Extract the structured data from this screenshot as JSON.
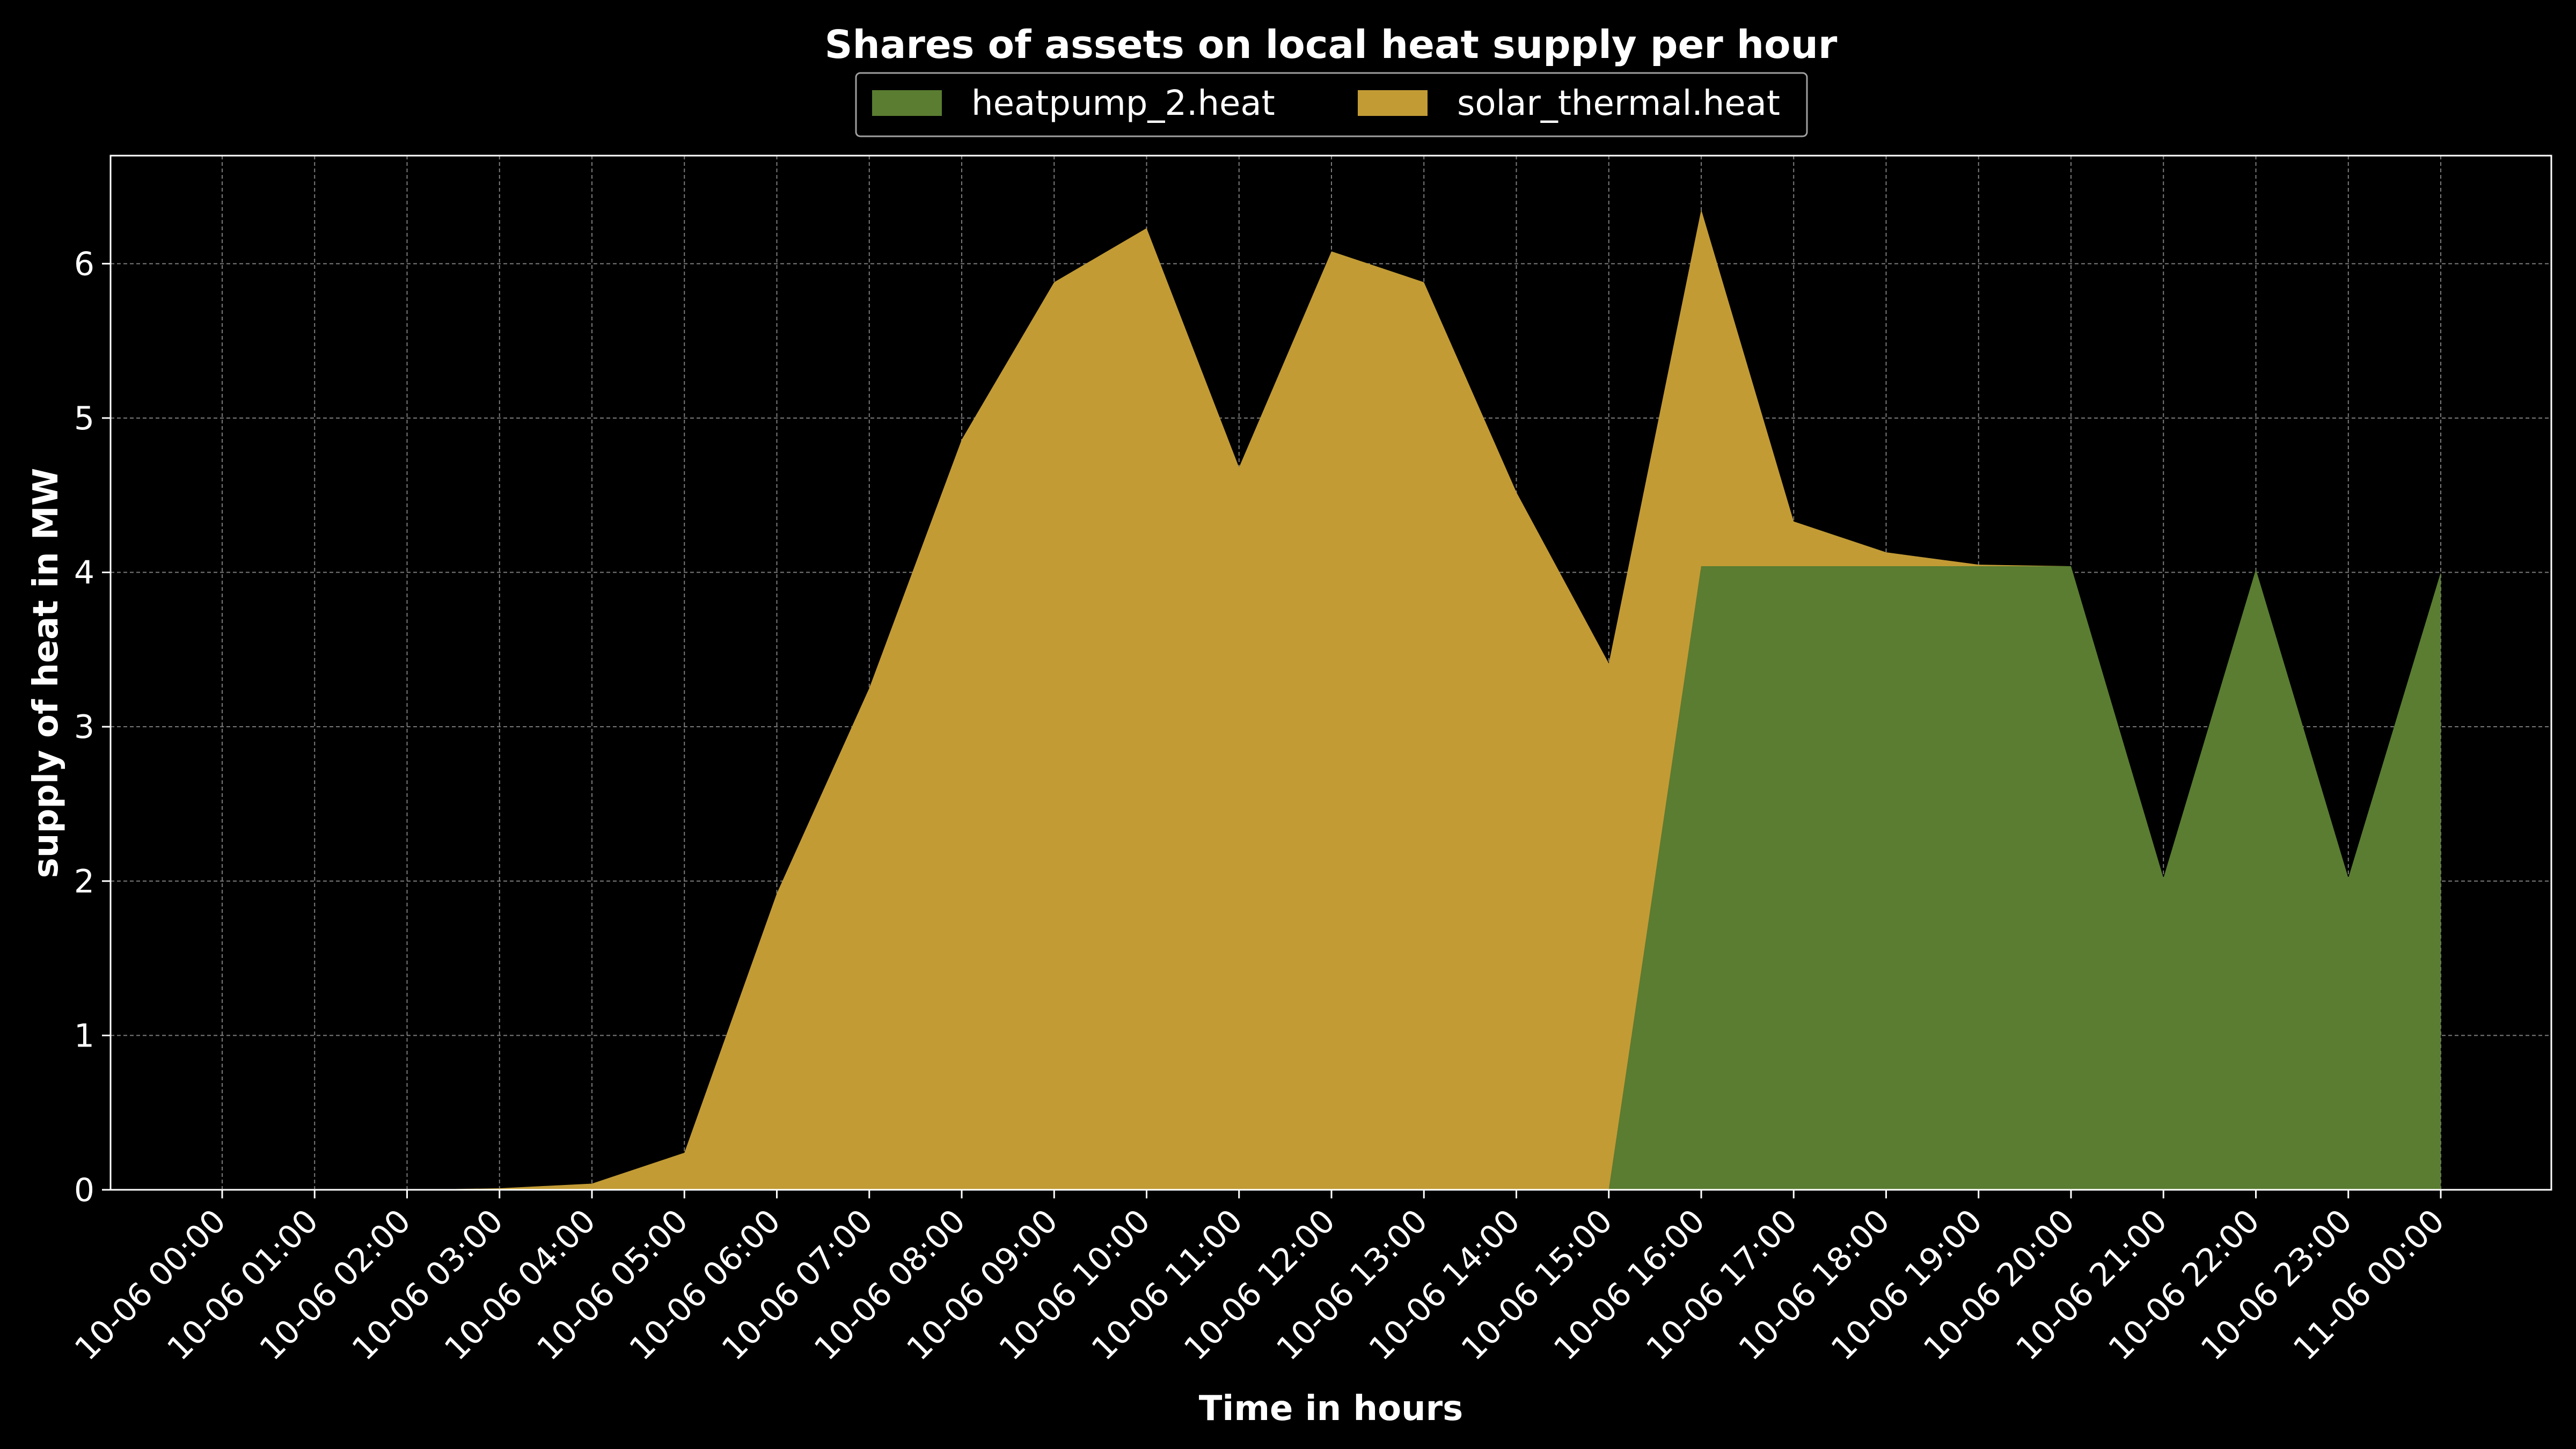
{
  "chart_data": {
    "type": "area",
    "stacked": true,
    "title": "Shares of assets on local heat supply per hour",
    "xlabel": "Time in hours",
    "ylabel": "supply of heat in MW",
    "ylim": [
      0,
      6.7
    ],
    "yticks": [
      0,
      1,
      2,
      3,
      4,
      5,
      6
    ],
    "grid": true,
    "legend_position": "top-center",
    "categories": [
      "10-06 00:00",
      "10-06 01:00",
      "10-06 02:00",
      "10-06 03:00",
      "10-06 04:00",
      "10-06 05:00",
      "10-06 06:00",
      "10-06 07:00",
      "10-06 08:00",
      "10-06 09:00",
      "10-06 10:00",
      "10-06 11:00",
      "10-06 12:00",
      "10-06 13:00",
      "10-06 14:00",
      "10-06 15:00",
      "10-06 16:00",
      "10-06 17:00",
      "10-06 18:00",
      "10-06 19:00",
      "10-06 20:00",
      "10-06 21:00",
      "10-06 22:00",
      "10-06 23:00",
      "11-06 00:00"
    ],
    "series": [
      {
        "name": "heatpump_2.heat",
        "color": "#5a7d31",
        "values": [
          0,
          0,
          0,
          0,
          0,
          0,
          0,
          0,
          0,
          0,
          0,
          0,
          0,
          0,
          0,
          0,
          4.04,
          4.04,
          4.04,
          4.04,
          4.04,
          2.02,
          4.02,
          2.02,
          4.0
        ]
      },
      {
        "name": "solar_thermal.heat",
        "color": "#c29b35",
        "values": [
          0,
          0,
          0,
          0.01,
          0.04,
          0.24,
          1.92,
          3.25,
          4.86,
          5.88,
          6.23,
          4.68,
          6.08,
          5.88,
          4.52,
          3.41,
          2.31,
          0.29,
          0.09,
          0.01,
          0,
          0,
          0,
          0,
          0
        ]
      }
    ]
  }
}
